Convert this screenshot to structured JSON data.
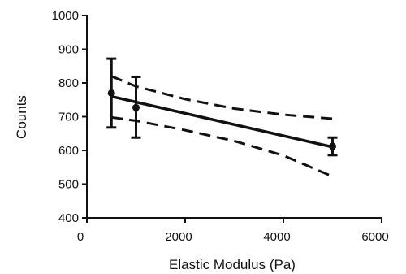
{
  "chart_data": {
    "type": "scatter",
    "title": "",
    "xlabel": "Elastic Modulus (Pa)",
    "ylabel": "Counts",
    "xlim": [
      0,
      6000
    ],
    "ylim": [
      400,
      1000
    ],
    "xticks": [
      0,
      2000,
      4000,
      6000
    ],
    "yticks": [
      400,
      500,
      600,
      700,
      800,
      900,
      1000
    ],
    "xtick_labels": [
      "0",
      "2000",
      "4000",
      "6000"
    ],
    "ytick_labels": [
      "400",
      "500",
      "600",
      "700",
      "800",
      "900",
      "1000"
    ],
    "grid": false,
    "legend": "none",
    "points": [
      {
        "x": 500,
        "y": 770,
        "yerr_low": 668,
        "yerr_high": 872
      },
      {
        "x": 1000,
        "y": 727,
        "yerr_low": 638,
        "yerr_high": 818
      },
      {
        "x": 5000,
        "y": 612,
        "yerr_low": 586,
        "yerr_high": 638
      }
    ],
    "fit_line": {
      "x": [
        500,
        5000
      ],
      "y": [
        760,
        610
      ]
    },
    "confidence_upper": {
      "x": [
        500,
        1000,
        2000,
        3000,
        4000,
        5000
      ],
      "y": [
        820,
        790,
        752,
        724,
        706,
        694
      ]
    },
    "confidence_lower": {
      "x": [
        500,
        1000,
        2000,
        3000,
        4000,
        5000
      ],
      "y": [
        698,
        688,
        660,
        628,
        585,
        523
      ]
    },
    "colors": {
      "line": "#111111",
      "axis": "#111111"
    }
  }
}
